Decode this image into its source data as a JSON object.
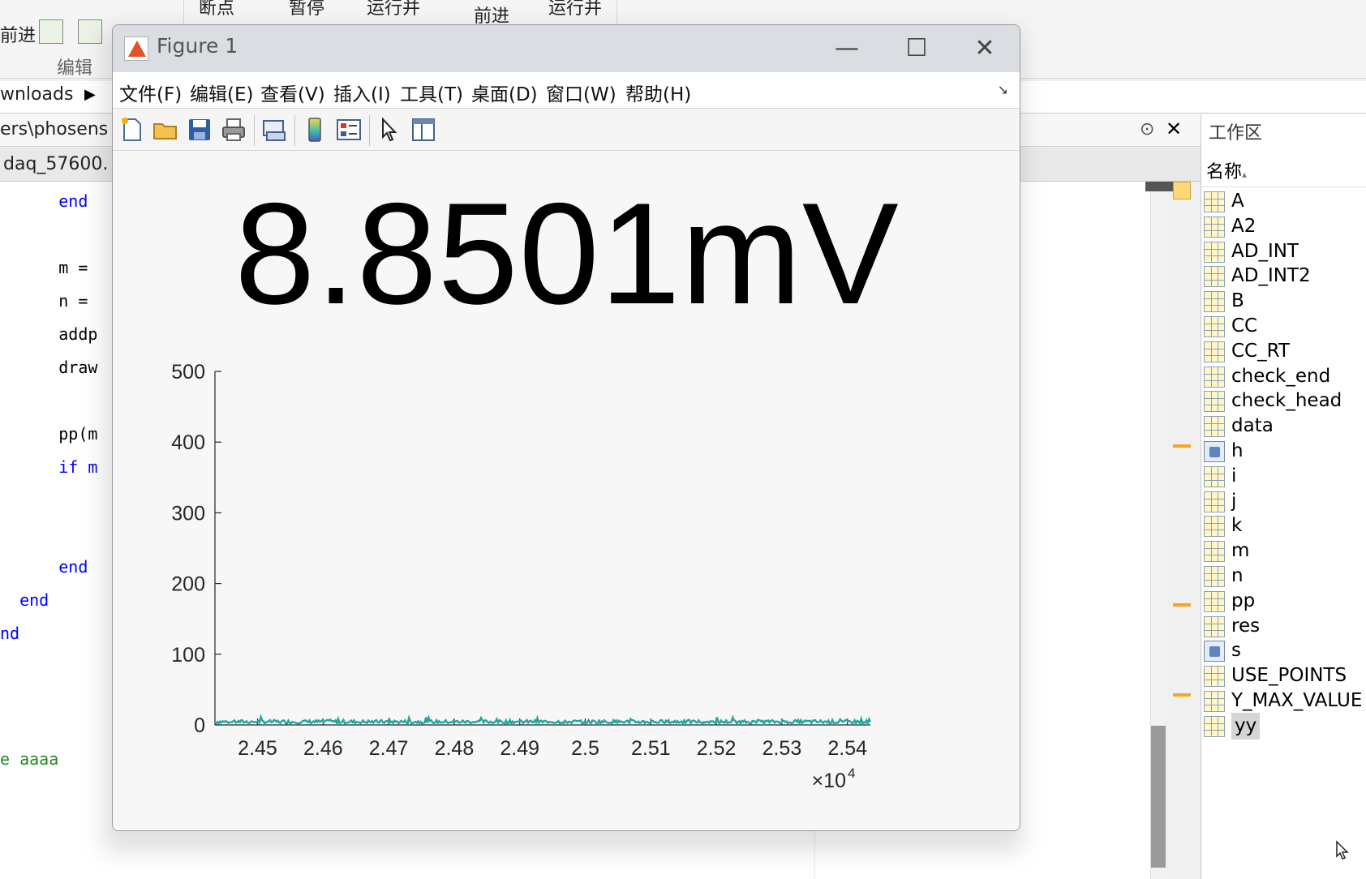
{
  "desktop": {
    "toolstrip": {
      "top_labels": [
        "断点",
        "暂停",
        "运行并",
        "前进",
        "运行并"
      ],
      "left_label": "前进",
      "group_label": "编辑"
    },
    "address_fragment": "wnloads",
    "path_fragment": "ers\\phosens",
    "editor_tab": "daq_57600.",
    "editor_lines": [
      {
        "indent": "      ",
        "text": "end",
        "kw": true
      },
      {
        "indent": "",
        "text": "",
        "kw": false
      },
      {
        "indent": "      ",
        "text": "m =",
        "kw": false
      },
      {
        "indent": "      ",
        "text": "n =",
        "kw": false
      },
      {
        "indent": "      ",
        "text": "addp",
        "kw": false
      },
      {
        "indent": "      ",
        "text": "draw",
        "kw": false
      },
      {
        "indent": "",
        "text": "",
        "kw": false
      },
      {
        "indent": "      ",
        "text": "pp(m",
        "kw": false
      },
      {
        "indent": "      ",
        "text": "if m",
        "kw": true
      },
      {
        "indent": "",
        "text": "",
        "kw": false
      },
      {
        "indent": "",
        "text": "",
        "kw": false
      },
      {
        "indent": "      ",
        "text": "end",
        "kw": true
      },
      {
        "indent": "  ",
        "text": "end",
        "kw": true
      },
      {
        "indent": "",
        "text": "nd",
        "kw": true
      }
    ],
    "editor_comment": "e aaaa"
  },
  "workspace": {
    "title": "工作区",
    "column_header": "名称",
    "sort_indicator": "▴",
    "variables": [
      {
        "name": "A",
        "type": "matrix"
      },
      {
        "name": "A2",
        "type": "matrix"
      },
      {
        "name": "AD_INT",
        "type": "matrix"
      },
      {
        "name": "AD_INT2",
        "type": "matrix"
      },
      {
        "name": "B",
        "type": "matrix"
      },
      {
        "name": "CC",
        "type": "matrix"
      },
      {
        "name": "CC_RT",
        "type": "matrix"
      },
      {
        "name": "check_end",
        "type": "matrix"
      },
      {
        "name": "check_head",
        "type": "matrix"
      },
      {
        "name": "data",
        "type": "matrix"
      },
      {
        "name": "h",
        "type": "object"
      },
      {
        "name": "i",
        "type": "matrix"
      },
      {
        "name": "j",
        "type": "matrix"
      },
      {
        "name": "k",
        "type": "matrix"
      },
      {
        "name": "m",
        "type": "matrix"
      },
      {
        "name": "n",
        "type": "matrix"
      },
      {
        "name": "pp",
        "type": "matrix"
      },
      {
        "name": "res",
        "type": "matrix"
      },
      {
        "name": "s",
        "type": "object"
      },
      {
        "name": "USE_POINTS",
        "type": "matrix"
      },
      {
        "name": "Y_MAX_VALUE",
        "type": "matrix"
      },
      {
        "name": "yy",
        "type": "matrix",
        "selected": true
      }
    ]
  },
  "figure": {
    "title": "Figure 1",
    "controls": {
      "minimize": "—",
      "maximize": "☐",
      "close": "✕"
    },
    "menu": [
      "文件(F)",
      "编辑(E)",
      "查看(V)",
      "插入(I)",
      "工具(T)",
      "桌面(D)",
      "窗口(W)",
      "帮助(H)"
    ],
    "toolbar": [
      "new-figure",
      "open-file",
      "save",
      "print",
      "link-plot",
      "colorbar",
      "legend",
      "edit-plot",
      "property-inspector"
    ],
    "readout": "8.8501mV",
    "line_color": "#1aa9a0"
  },
  "chart_data": {
    "type": "line",
    "title": "",
    "xlabel": "",
    "ylabel": "",
    "xlim": [
      24435,
      25435
    ],
    "ylim": [
      0,
      500
    ],
    "xticks": [
      24500,
      24600,
      24700,
      24800,
      24900,
      25000,
      25100,
      25200,
      25300,
      25400
    ],
    "xtick_labels": [
      "2.45",
      "2.46",
      "2.47",
      "2.48",
      "2.49",
      "2.5",
      "2.51",
      "2.52",
      "2.53",
      "2.54"
    ],
    "x_exponent_label": "×10",
    "x_exponent": "4",
    "yticks": [
      0,
      100,
      200,
      300,
      400,
      500
    ],
    "ytick_labels": [
      "0",
      "100",
      "200",
      "300",
      "400",
      "500"
    ],
    "series": [
      {
        "x_start": 24435,
        "x_end": 25435,
        "baseline": 2,
        "noise_max": 10
      }
    ]
  }
}
